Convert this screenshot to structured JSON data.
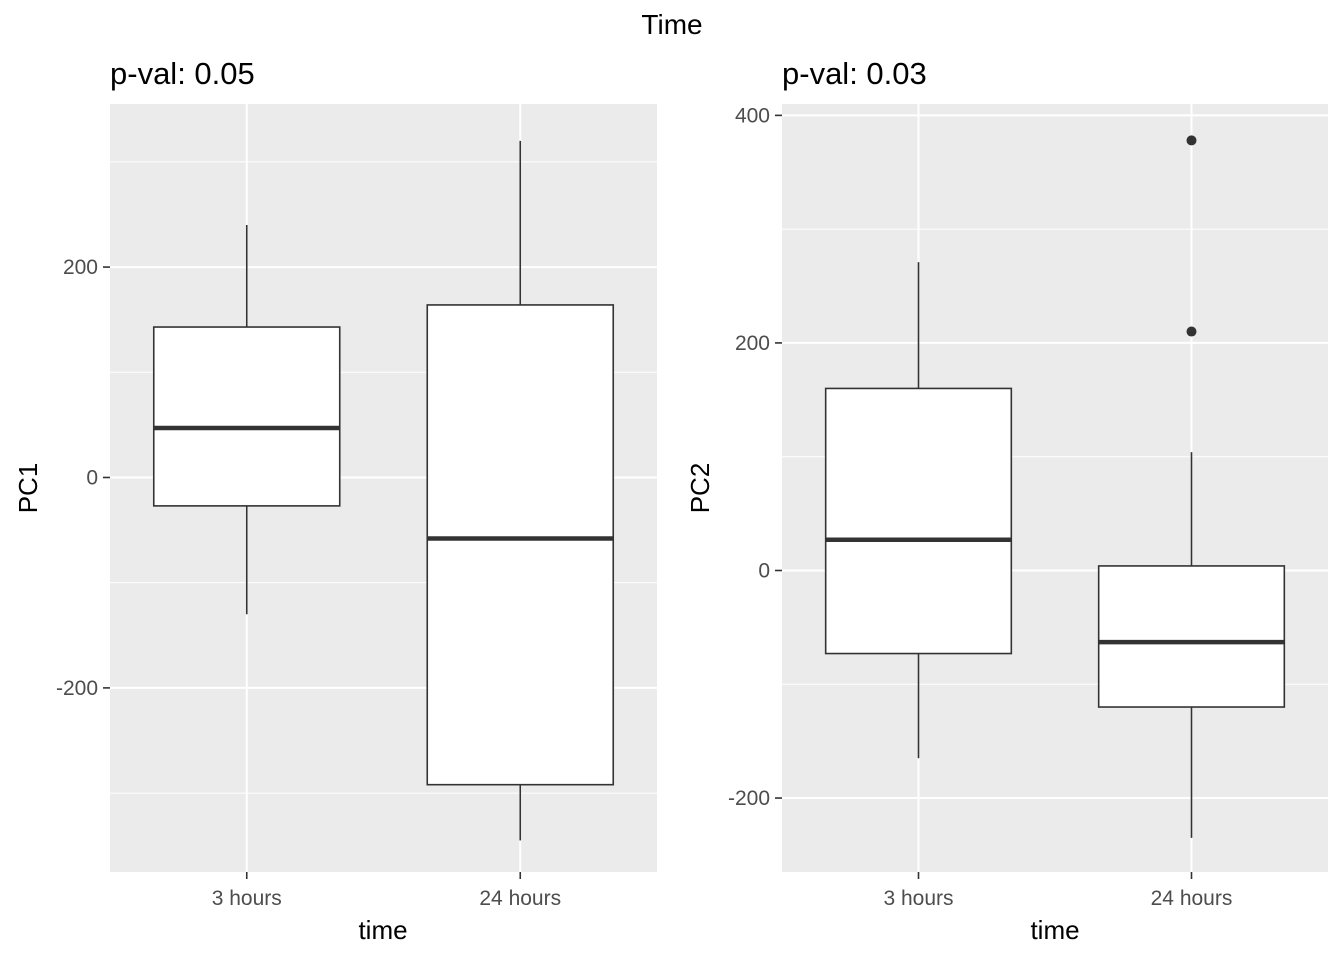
{
  "figure": {
    "title": "Time"
  },
  "chart_data": [
    {
      "type": "boxplot",
      "title": "p-val: 0.05",
      "xlabel": "time",
      "ylabel": "PC1",
      "categories": [
        "3 hours",
        "24 hours"
      ],
      "ylim": [
        -375,
        355
      ],
      "yticks": [
        -200,
        0,
        200
      ],
      "ytick_labels": [
        "-200",
        "0",
        "200"
      ],
      "grid": true,
      "boxes": [
        {
          "category": "3 hours",
          "whisker_low": -130,
          "q1": -27,
          "median": 47,
          "q3": 143,
          "whisker_high": 240,
          "outliers": []
        },
        {
          "category": "24 hours",
          "whisker_low": -345,
          "q1": -292,
          "median": -58,
          "q3": 164,
          "whisker_high": 320,
          "outliers": []
        }
      ]
    },
    {
      "type": "boxplot",
      "title": "p-val: 0.03",
      "xlabel": "time",
      "ylabel": "PC2",
      "categories": [
        "3 hours",
        "24 hours"
      ],
      "ylim": [
        -265,
        410
      ],
      "yticks": [
        -200,
        0,
        200,
        400
      ],
      "ytick_labels": [
        "-200",
        "0",
        "200",
        "400"
      ],
      "grid": true,
      "boxes": [
        {
          "category": "3 hours",
          "whisker_low": -165,
          "q1": -73,
          "median": 27,
          "q3": 160,
          "whisker_high": 271,
          "outliers": []
        },
        {
          "category": "24 hours",
          "whisker_low": -235,
          "q1": -120,
          "median": -63,
          "q3": 4,
          "whisker_high": 104,
          "outliers": [
            378,
            210
          ]
        }
      ]
    }
  ]
}
